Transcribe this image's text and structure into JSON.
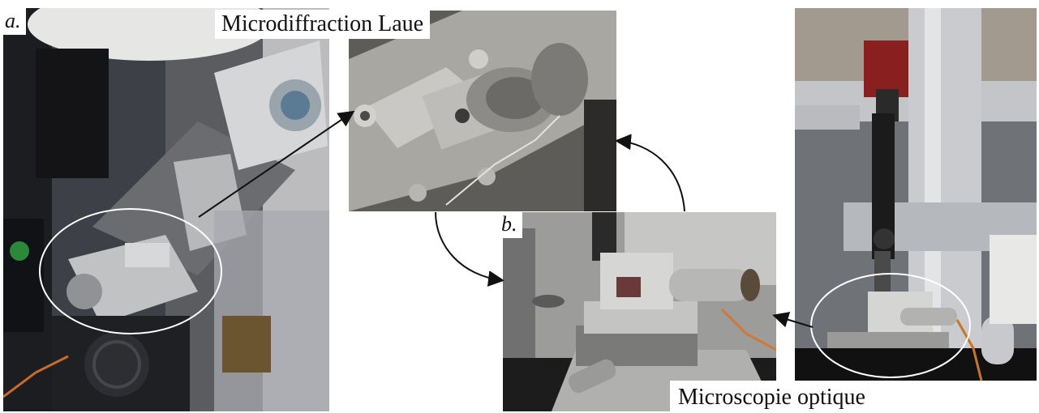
{
  "labels": {
    "title_laue": "Microdiffraction Laue",
    "title_microscopy": "Microscopie optique",
    "panel_a": "a.",
    "panel_b": "b."
  },
  "colors": {
    "background": "#ffffff",
    "annotation_line": "#111111",
    "highlight_ellipse": "#ffffff"
  }
}
